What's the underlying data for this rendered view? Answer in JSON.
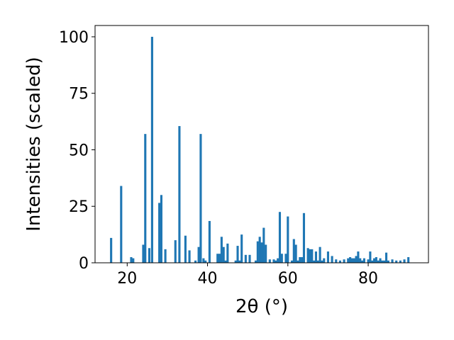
{
  "chart_data": {
    "type": "bar",
    "title": "",
    "xlabel": "2θ (°)",
    "ylabel": "Intensities (scaled)",
    "xlim": [
      12,
      95
    ],
    "ylim": [
      0,
      105
    ],
    "xticks": [
      20,
      40,
      60,
      80
    ],
    "yticks": [
      0,
      25,
      50,
      75,
      100
    ],
    "bar_color": "#1f77b4",
    "grid": false,
    "legend": "none",
    "x": [
      16.0,
      18.5,
      21.0,
      21.5,
      24.0,
      24.5,
      25.5,
      26.2,
      28.0,
      28.5,
      29.5,
      32.0,
      33.0,
      34.5,
      35.5,
      37.0,
      37.8,
      38.3,
      39.0,
      39.5,
      40.5,
      42.5,
      43.0,
      43.5,
      44.0,
      44.5,
      45.0,
      47.0,
      47.5,
      48.0,
      48.5,
      49.5,
      50.5,
      52.0,
      52.5,
      53.0,
      53.5,
      54.0,
      54.5,
      55.5,
      56.5,
      57.0,
      57.5,
      58.0,
      58.5,
      59.5,
      60.0,
      61.0,
      61.5,
      62.0,
      62.5,
      63.0,
      63.5,
      64.0,
      65.0,
      65.5,
      66.0,
      66.5,
      67.0,
      67.5,
      68.0,
      68.5,
      69.0,
      70.0,
      71.0,
      72.0,
      73.0,
      74.0,
      75.0,
      75.5,
      76.0,
      76.5,
      77.0,
      77.5,
      78.0,
      78.5,
      79.0,
      80.0,
      80.5,
      81.0,
      81.5,
      82.0,
      82.5,
      83.0,
      83.5,
      84.0,
      84.5,
      85.0,
      86.0,
      87.0,
      88.0,
      89.0,
      90.0
    ],
    "values": [
      11,
      34,
      2.5,
      2,
      8,
      57,
      6.5,
      100,
      26.5,
      30,
      6,
      10,
      60.5,
      12,
      5.5,
      1,
      7,
      57,
      2,
      1,
      18.5,
      4,
      4,
      11.5,
      7,
      1,
      8.5,
      1,
      7.5,
      1,
      12.5,
      3.5,
      3.5,
      1,
      9.5,
      11.5,
      9,
      15.5,
      8,
      1.5,
      1.5,
      1,
      2,
      22.5,
      4,
      4,
      20.5,
      1,
      10.5,
      8,
      1,
      2.5,
      2.5,
      22,
      6.5,
      6,
      6,
      1,
      5,
      1,
      7,
      1,
      2,
      5,
      3,
      1.5,
      1,
      1.5,
      2,
      2.5,
      2,
      2,
      3,
      5,
      2,
      1,
      2,
      1.5,
      5,
      1,
      2,
      2.5,
      1,
      2,
      1,
      1,
      4.5,
      1,
      1.5,
      1,
      1,
      1.5,
      2.5
    ]
  }
}
